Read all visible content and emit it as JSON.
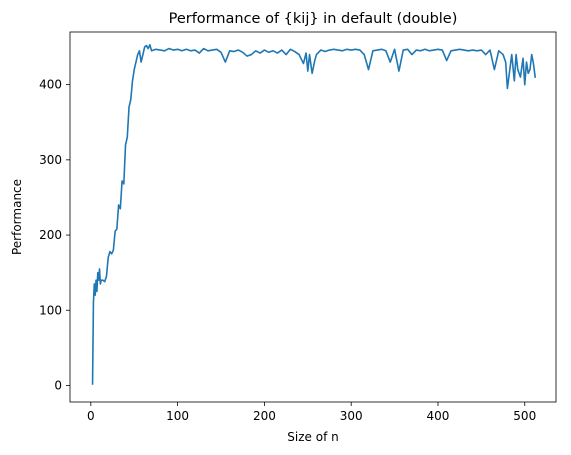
{
  "chart_data": {
    "type": "line",
    "title": "Performance of {kij} in default (double)",
    "xlabel": "Size of n",
    "ylabel": "Performance",
    "xlim": [
      -24,
      536
    ],
    "ylim": [
      -22,
      470
    ],
    "xticks": [
      0,
      100,
      200,
      300,
      400,
      500
    ],
    "yticks": [
      0,
      100,
      200,
      300,
      400
    ],
    "grid": false,
    "color": "#1f77b4",
    "series": [
      {
        "x": [
          2,
          3,
          4,
          5,
          6,
          7,
          8,
          9,
          10,
          11,
          12,
          14,
          16,
          18,
          20,
          22,
          24,
          26,
          28,
          30,
          32,
          34,
          36,
          38,
          40,
          42,
          44,
          46,
          48,
          50,
          52,
          54,
          56,
          58,
          60,
          62,
          64,
          66,
          68,
          70,
          75,
          80,
          85,
          90,
          95,
          100,
          105,
          110,
          115,
          120,
          125,
          130,
          135,
          140,
          145,
          150,
          155,
          160,
          165,
          170,
          175,
          180,
          185,
          190,
          195,
          200,
          205,
          210,
          215,
          220,
          225,
          230,
          235,
          240,
          245,
          248,
          250,
          252,
          255,
          258,
          260,
          265,
          270,
          275,
          280,
          285,
          290,
          295,
          300,
          305,
          310,
          315,
          320,
          325,
          330,
          335,
          340,
          345,
          350,
          355,
          360,
          365,
          370,
          375,
          380,
          385,
          390,
          395,
          400,
          405,
          410,
          415,
          420,
          425,
          430,
          435,
          440,
          445,
          450,
          455,
          460,
          465,
          470,
          475,
          478,
          480,
          485,
          488,
          490,
          492,
          495,
          498,
          500,
          502,
          504,
          506,
          508,
          510,
          512
        ],
        "y": [
          2,
          110,
          135,
          120,
          140,
          125,
          150,
          140,
          155,
          135,
          140,
          140,
          138,
          145,
          170,
          178,
          175,
          180,
          205,
          208,
          240,
          235,
          272,
          268,
          320,
          330,
          370,
          380,
          405,
          420,
          430,
          440,
          445,
          430,
          440,
          450,
          452,
          448,
          453,
          445,
          447,
          446,
          445,
          448,
          446,
          447,
          445,
          447,
          445,
          446,
          442,
          448,
          445,
          446,
          447,
          443,
          430,
          445,
          444,
          446,
          443,
          438,
          440,
          445,
          442,
          446,
          443,
          445,
          442,
          446,
          440,
          447,
          444,
          440,
          428,
          442,
          418,
          440,
          415,
          432,
          440,
          446,
          444,
          446,
          447,
          446,
          445,
          447,
          446,
          447,
          446,
          440,
          420,
          445,
          446,
          447,
          445,
          430,
          447,
          418,
          446,
          447,
          440,
          446,
          445,
          447,
          445,
          446,
          447,
          446,
          432,
          445,
          446,
          447,
          446,
          445,
          446,
          445,
          446,
          440,
          446,
          420,
          445,
          440,
          430,
          395,
          440,
          405,
          440,
          420,
          410,
          435,
          400,
          430,
          415,
          420,
          440,
          428,
          410
        ]
      }
    ]
  }
}
